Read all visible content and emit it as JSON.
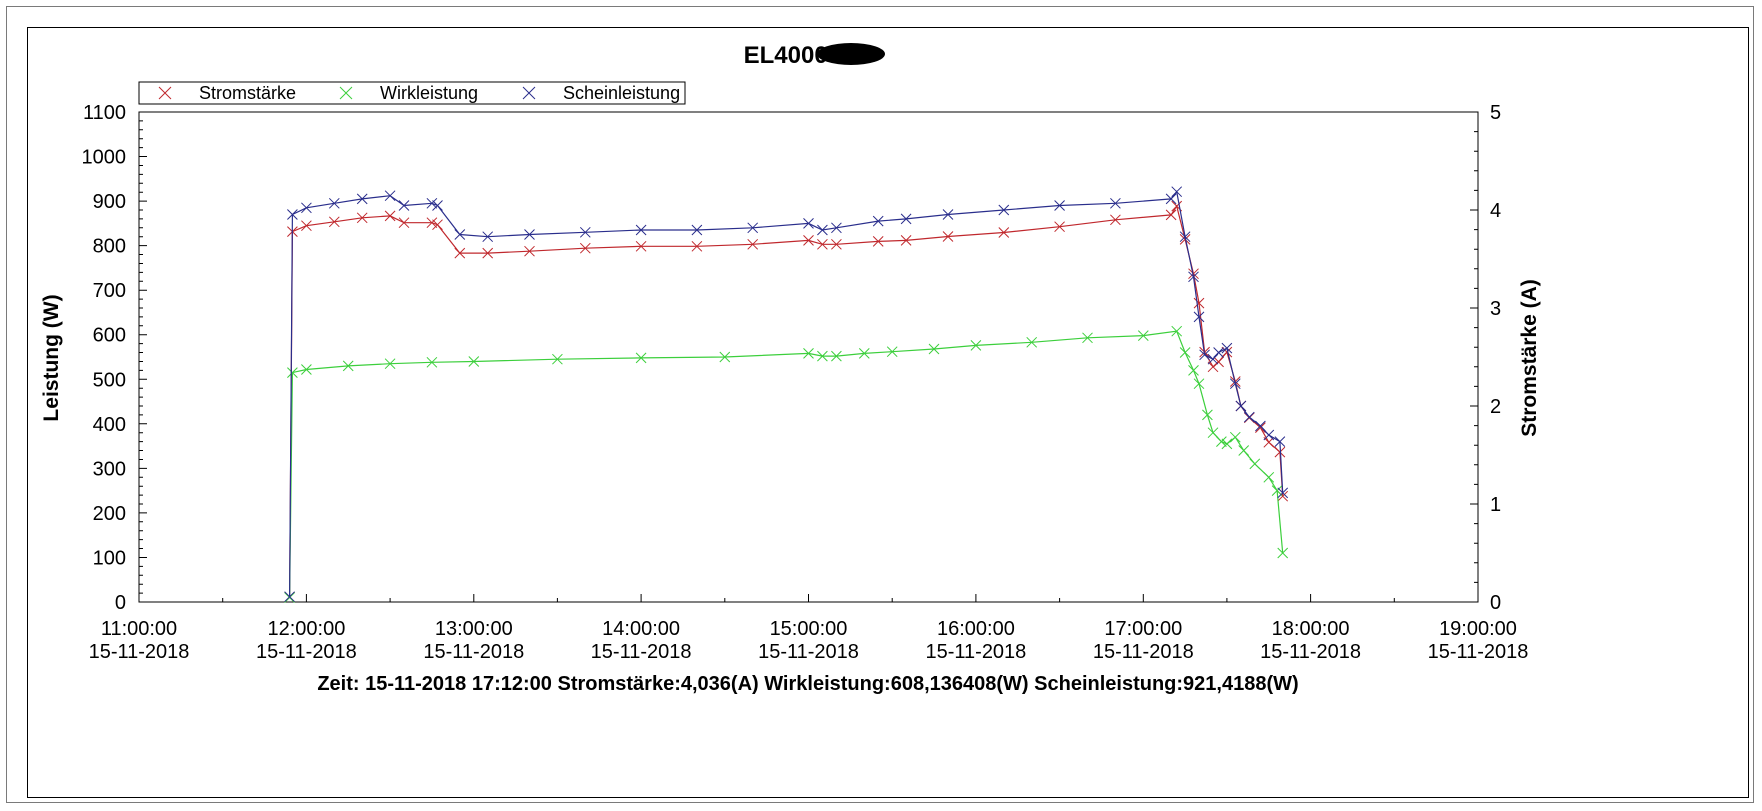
{
  "chart_data": {
    "type": "scatter",
    "title": "EL4000 -",
    "title_redaction_color": "#000000",
    "legend_placement": "top-left",
    "ylabel_left": "Leistung (W)",
    "ylabel_right": "Stromstärke (A)",
    "ylim_left": [
      0,
      1100
    ],
    "ylim_right": [
      0,
      5
    ],
    "y_ticks_left": [
      "0",
      "100",
      "200",
      "300",
      "400",
      "500",
      "600",
      "700",
      "800",
      "900",
      "1000",
      "1100"
    ],
    "y_ticks_right": [
      "0",
      "1",
      "2",
      "3",
      "4",
      "5"
    ],
    "xlim": [
      "11:00:00",
      "19:00:00"
    ],
    "x_ticks": [
      {
        "time": "11:00:00",
        "date": "15-11-2018"
      },
      {
        "time": "12:00:00",
        "date": "15-11-2018"
      },
      {
        "time": "13:00:00",
        "date": "15-11-2018"
      },
      {
        "time": "14:00:00",
        "date": "15-11-2018"
      },
      {
        "time": "15:00:00",
        "date": "15-11-2018"
      },
      {
        "time": "16:00:00",
        "date": "15-11-2018"
      },
      {
        "time": "17:00:00",
        "date": "15-11-2018"
      },
      {
        "time": "18:00:00",
        "date": "15-11-2018"
      },
      {
        "time": "19:00:00",
        "date": "15-11-2018"
      }
    ],
    "grid": false,
    "series": [
      {
        "name": "Stromstärke",
        "axis": "right",
        "color": "#c0282d",
        "marker": "x",
        "x": [
          "11:54:00",
          "11:55:00",
          "12:00:00",
          "12:10:00",
          "12:20:00",
          "12:30:00",
          "12:35:00",
          "12:45:00",
          "12:47:00",
          "12:55:00",
          "13:05:00",
          "13:20:00",
          "13:40:00",
          "14:00:00",
          "14:20:00",
          "14:40:00",
          "15:00:00",
          "15:05:00",
          "15:10:00",
          "15:25:00",
          "15:35:00",
          "15:50:00",
          "16:10:00",
          "16:30:00",
          "16:50:00",
          "17:10:00",
          "17:12:00",
          "17:15:00",
          "17:18:00",
          "17:20:00",
          "17:22:00",
          "17:25:00",
          "17:27:00",
          "17:30:00",
          "17:33:00",
          "17:35:00",
          "17:38:00",
          "17:42:00",
          "17:45:00",
          "17:49:00",
          "17:50:00"
        ],
        "values": [
          0.05,
          3.78,
          3.84,
          3.88,
          3.92,
          3.94,
          3.87,
          3.87,
          3.85,
          3.56,
          3.56,
          3.58,
          3.61,
          3.63,
          3.63,
          3.65,
          3.69,
          3.65,
          3.65,
          3.68,
          3.69,
          3.73,
          3.77,
          3.83,
          3.9,
          3.95,
          4.04,
          3.7,
          3.35,
          3.05,
          2.55,
          2.4,
          2.45,
          2.55,
          2.25,
          2.0,
          1.88,
          1.78,
          1.63,
          1.53,
          1.08
        ]
      },
      {
        "name": "Wirkleistung",
        "axis": "left",
        "color": "#3ccf3c",
        "marker": "x",
        "x": [
          "11:54:00",
          "11:55:00",
          "12:00:00",
          "12:15:00",
          "12:30:00",
          "12:45:00",
          "13:00:00",
          "13:30:00",
          "14:00:00",
          "14:30:00",
          "15:00:00",
          "15:05:00",
          "15:10:00",
          "15:20:00",
          "15:30:00",
          "15:45:00",
          "16:00:00",
          "16:20:00",
          "16:40:00",
          "17:00:00",
          "17:12:00",
          "17:15:00",
          "17:18:00",
          "17:20:00",
          "17:23:00",
          "17:25:00",
          "17:28:00",
          "17:30:00",
          "17:33:00",
          "17:36:00",
          "17:40:00",
          "17:45:00",
          "17:48:00",
          "17:50:00"
        ],
        "values": [
          10,
          515,
          522,
          530,
          535,
          538,
          540,
          545,
          548,
          550,
          558,
          552,
          552,
          558,
          562,
          568,
          576,
          583,
          593,
          598,
          608,
          560,
          520,
          490,
          420,
          380,
          360,
          355,
          370,
          340,
          310,
          280,
          250,
          110
        ]
      },
      {
        "name": "Scheinleistung",
        "axis": "left",
        "color": "#2a2e8c",
        "marker": "x",
        "x": [
          "11:54:00",
          "11:55:00",
          "12:00:00",
          "12:10:00",
          "12:20:00",
          "12:30:00",
          "12:35:00",
          "12:45:00",
          "12:47:00",
          "12:55:00",
          "13:05:00",
          "13:20:00",
          "13:40:00",
          "14:00:00",
          "14:20:00",
          "14:40:00",
          "15:00:00",
          "15:05:00",
          "15:10:00",
          "15:25:00",
          "15:35:00",
          "15:50:00",
          "16:10:00",
          "16:30:00",
          "16:50:00",
          "17:10:00",
          "17:12:00",
          "17:15:00",
          "17:18:00",
          "17:20:00",
          "17:22:00",
          "17:25:00",
          "17:27:00",
          "17:30:00",
          "17:33:00",
          "17:35:00",
          "17:38:00",
          "17:42:00",
          "17:45:00",
          "17:49:00",
          "17:50:00"
        ],
        "values": [
          12,
          870,
          885,
          895,
          905,
          912,
          890,
          895,
          890,
          825,
          820,
          825,
          830,
          835,
          835,
          840,
          850,
          835,
          840,
          855,
          860,
          870,
          880,
          890,
          895,
          905,
          921,
          820,
          730,
          640,
          555,
          545,
          560,
          570,
          490,
          440,
          415,
          395,
          375,
          360,
          245
        ]
      }
    ]
  },
  "footer": {
    "readout": "Zeit: 15-11-2018 17:12:00 Stromstärke:4,036(A) Wirkleistung:608,136408(W) Scheinleistung:921,4188(W)"
  }
}
